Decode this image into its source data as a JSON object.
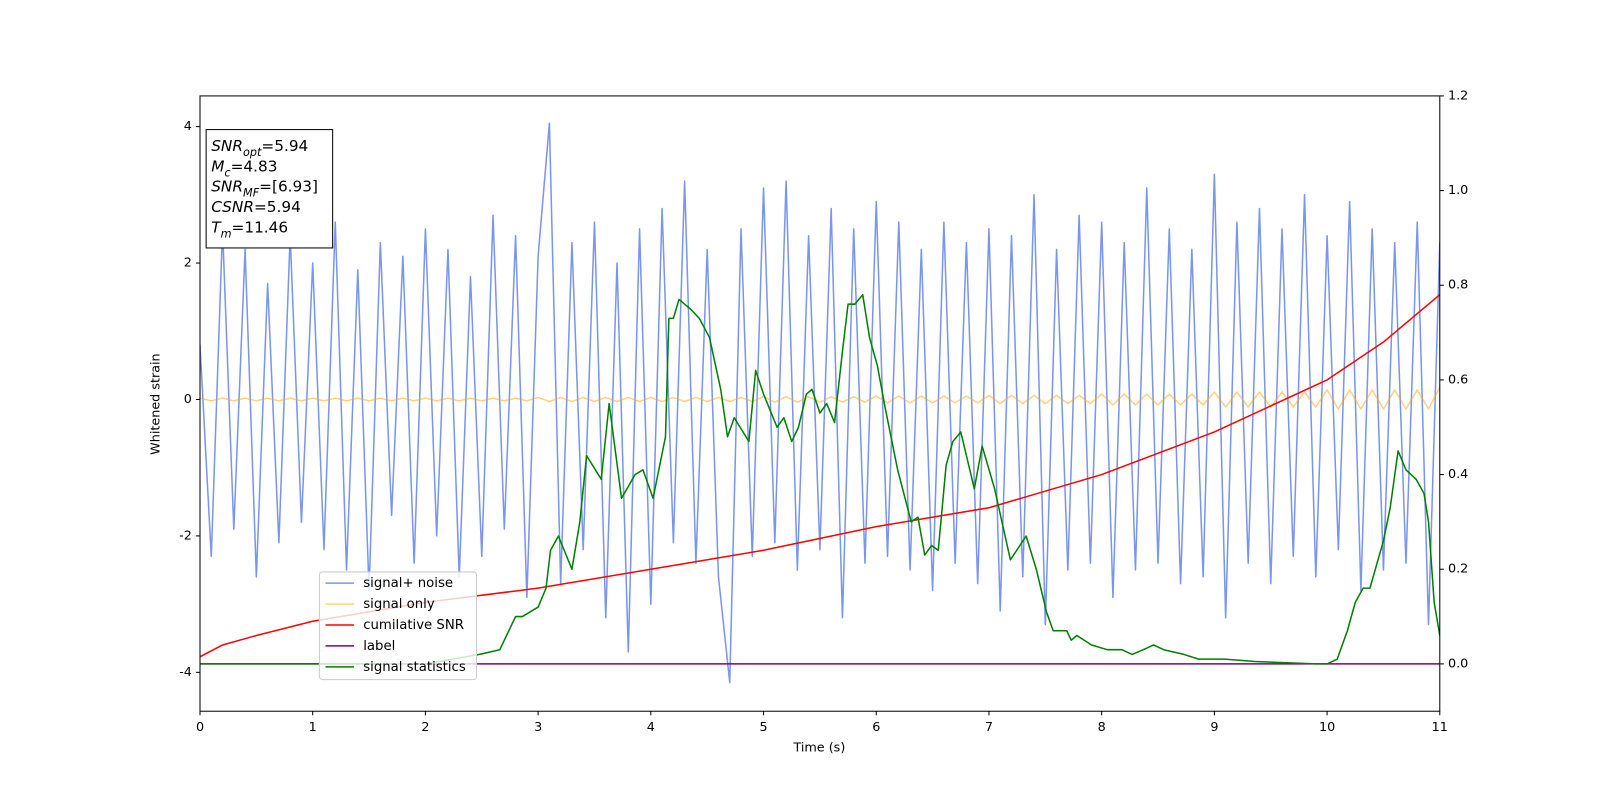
{
  "chart_data": {
    "type": "line",
    "xlabel": "Time (s)",
    "ylabel": "Whitened strain",
    "xlim": [
      0,
      11
    ],
    "xticks": [
      0,
      1,
      2,
      3,
      4,
      5,
      6,
      7,
      8,
      9,
      10,
      11
    ],
    "ylim": [
      -4.57,
      4.45
    ],
    "yticks": [
      -4,
      -2,
      0,
      2,
      4
    ],
    "y2lim": [
      -0.1,
      1.2
    ],
    "y2ticks": [
      {
        "value": 0,
        "label": "0.0"
      },
      0.2,
      0.4,
      0.6,
      0.8,
      {
        "value": 1,
        "label": "1.0"
      },
      1.2
    ],
    "legend_loc": "lower left",
    "annotations": [
      {
        "symbol": "SNR",
        "subscript": "opt",
        "text": "=5.94"
      },
      {
        "symbol": "M",
        "subscript": "c",
        "text": "=4.83"
      },
      {
        "symbol": "SNR",
        "subscript": "MF",
        "text": "=[6.93]"
      },
      {
        "symbol": "CSNR",
        "text": "=5.94"
      },
      {
        "symbol": "T",
        "subscript": "m",
        "text": "=11.46"
      }
    ],
    "x": [
      0,
      0.1,
      0.2,
      0.3,
      0.4,
      0.5,
      0.6,
      0.7,
      0.8,
      0.9,
      1,
      1.1,
      1.2,
      1.3,
      1.4,
      1.5,
      1.6,
      1.7,
      1.8,
      1.9,
      2,
      2.1,
      2.2,
      2.3,
      2.4,
      2.5,
      2.6,
      2.7,
      2.8,
      2.9,
      3,
      3.1,
      3.2,
      3.3,
      3.4,
      3.5,
      3.6,
      3.7,
      3.8,
      3.9,
      4,
      4.1,
      4.2,
      4.3,
      4.4,
      4.5,
      4.6,
      4.7,
      4.8,
      4.9,
      5,
      5.1,
      5.2,
      5.3,
      5.4,
      5.5,
      5.6,
      5.7,
      5.8,
      5.9,
      6,
      6.1,
      6.2,
      6.3,
      6.4,
      6.5,
      6.6,
      6.7,
      6.8,
      6.9,
      7,
      7.1,
      7.2,
      7.3,
      7.4,
      7.5,
      7.6,
      7.7,
      7.8,
      7.9,
      8,
      8.1,
      8.2,
      8.3,
      8.4,
      8.5,
      8.6,
      8.7,
      8.8,
      8.9,
      9,
      9.1,
      9.2,
      9.3,
      9.4,
      9.5,
      9.6,
      9.7,
      9.8,
      9.9,
      10,
      10.1,
      10.2,
      10.3,
      10.4,
      10.5,
      10.6,
      10.7,
      10.8,
      10.9,
      11
    ],
    "series": [
      {
        "name": "signal+ noise",
        "color": "royalblue",
        "alpha": 0.7,
        "values": [
          0.8,
          -2.3,
          2.5,
          -1.9,
          2.2,
          -2.6,
          1.7,
          -2.1,
          2.4,
          -1.8,
          2.0,
          -2.2,
          2.6,
          -2.5,
          1.9,
          -2.8,
          2.3,
          -1.7,
          2.1,
          -2.4,
          2.5,
          -2.0,
          2.2,
          -2.6,
          1.8,
          -2.3,
          2.7,
          -1.9,
          2.4,
          -2.9,
          2.1,
          4.05,
          -2.7,
          2.3,
          -2.2,
          2.6,
          -3.2,
          2.0,
          -3.7,
          2.5,
          -3.0,
          2.8,
          -2.1,
          3.2,
          -2.4,
          2.2,
          -2.6,
          -4.15,
          2.5,
          -2.3,
          3.1,
          -2.1,
          3.2,
          -2.5,
          2.4,
          -2.2,
          2.8,
          -3.2,
          2.5,
          -2.4,
          2.9,
          -2.3,
          2.6,
          -2.5,
          2.2,
          -2.8,
          2.6,
          -2.4,
          2.3,
          -2.7,
          2.5,
          -3.1,
          2.4,
          -2.6,
          3.0,
          -3.3,
          2.2,
          -2.5,
          2.7,
          -2.4,
          2.6,
          -2.9,
          2.3,
          -2.5,
          3.1,
          -2.4,
          2.5,
          -2.7,
          2.2,
          -2.6,
          3.3,
          -3.2,
          2.6,
          -2.4,
          2.8,
          -2.7,
          2.5,
          -2.3,
          3.0,
          -2.6,
          2.4,
          -2.2,
          2.9,
          -2.8,
          2.5,
          -2.5,
          2.3,
          -2.4,
          2.6,
          -3.3,
          2.3
        ]
      },
      {
        "name": "signal only",
        "color": "orange",
        "alpha": 0.5,
        "values": [
          0.02,
          -0.02,
          0.02,
          -0.02,
          0.02,
          -0.02,
          0.02,
          -0.02,
          0.02,
          -0.02,
          0.02,
          -0.02,
          0.02,
          -0.02,
          0.02,
          -0.02,
          0.02,
          -0.02,
          0.02,
          -0.02,
          0.02,
          -0.02,
          0.02,
          -0.02,
          0.02,
          -0.02,
          0.02,
          -0.02,
          0.02,
          -0.02,
          0.03,
          -0.03,
          0.03,
          -0.03,
          0.03,
          -0.03,
          0.03,
          -0.03,
          0.03,
          -0.03,
          0.03,
          -0.03,
          0.03,
          -0.03,
          0.03,
          -0.03,
          0.03,
          -0.03,
          0.03,
          -0.03,
          0.04,
          -0.04,
          0.04,
          -0.04,
          0.04,
          -0.04,
          0.04,
          -0.04,
          0.04,
          -0.04,
          0.05,
          -0.05,
          0.05,
          -0.05,
          0.05,
          -0.05,
          0.05,
          -0.05,
          0.05,
          -0.05,
          0.06,
          -0.06,
          0.06,
          -0.06,
          0.06,
          -0.06,
          0.06,
          -0.06,
          0.06,
          -0.06,
          0.08,
          -0.08,
          0.08,
          -0.08,
          0.08,
          -0.08,
          0.08,
          -0.08,
          0.08,
          -0.08,
          0.11,
          -0.11,
          0.11,
          -0.11,
          0.11,
          -0.11,
          0.11,
          -0.11,
          0.11,
          -0.11,
          0.14,
          -0.14,
          0.14,
          -0.14,
          0.14,
          -0.14,
          0.14,
          -0.14,
          0.14,
          -0.14,
          0.18
        ]
      },
      {
        "name": "cumilative SNR",
        "color": "red",
        "axis": "y2",
        "x": [
          0,
          0.2,
          0.5,
          1,
          2,
          3,
          4,
          5,
          6,
          7,
          8,
          9,
          10,
          10.5,
          11
        ],
        "values": [
          0.015,
          0.04,
          0.06,
          0.09,
          0.13,
          0.16,
          0.2,
          0.24,
          0.29,
          0.33,
          0.4,
          0.49,
          0.6,
          0.68,
          0.78
        ]
      },
      {
        "name": "label",
        "color": "purple",
        "axis": "y2",
        "x": [
          0,
          11
        ],
        "values": [
          0,
          0
        ]
      },
      {
        "name": "signal statistics",
        "color": "green",
        "axis": "y2",
        "x": [
          0,
          1,
          2,
          2.48,
          2.66,
          2.8,
          2.86,
          2.93,
          3.0,
          3.07,
          3.11,
          3.18,
          3.3,
          3.37,
          3.43,
          3.56,
          3.63,
          3.74,
          3.86,
          3.93,
          4.02,
          4.13,
          4.16,
          4.2,
          4.25,
          4.35,
          4.43,
          4.52,
          4.62,
          4.68,
          4.74,
          4.87,
          4.93,
          5.0,
          5.12,
          5.18,
          5.25,
          5.31,
          5.38,
          5.43,
          5.5,
          5.56,
          5.63,
          5.7,
          5.75,
          5.81,
          5.88,
          5.94,
          6.01,
          6.08,
          6.19,
          6.31,
          6.37,
          6.43,
          6.49,
          6.55,
          6.62,
          6.68,
          6.75,
          6.81,
          6.87,
          6.94,
          7.05,
          7.19,
          7.33,
          7.42,
          7.51,
          7.57,
          7.69,
          7.73,
          7.78,
          7.91,
          8.05,
          8.18,
          8.27,
          8.37,
          8.46,
          8.55,
          8.73,
          8.86,
          9.09,
          9.36,
          9.9,
          10.0,
          10.09,
          10.18,
          10.25,
          10.32,
          10.38,
          10.5,
          10.56,
          10.63,
          10.7,
          10.79,
          10.86,
          10.9,
          10.95,
          11
        ],
        "values": [
          0,
          0,
          0,
          0.02,
          0.03,
          0.1,
          0.1,
          0.11,
          0.12,
          0.16,
          0.24,
          0.27,
          0.2,
          0.3,
          0.44,
          0.39,
          0.55,
          0.35,
          0.4,
          0.41,
          0.35,
          0.48,
          0.73,
          0.73,
          0.77,
          0.75,
          0.73,
          0.69,
          0.58,
          0.48,
          0.52,
          0.47,
          0.62,
          0.57,
          0.5,
          0.52,
          0.47,
          0.5,
          0.57,
          0.58,
          0.53,
          0.55,
          0.51,
          0.66,
          0.76,
          0.76,
          0.78,
          0.69,
          0.63,
          0.54,
          0.41,
          0.3,
          0.31,
          0.23,
          0.25,
          0.24,
          0.42,
          0.47,
          0.49,
          0.43,
          0.37,
          0.46,
          0.37,
          0.22,
          0.27,
          0.2,
          0.11,
          0.07,
          0.07,
          0.05,
          0.06,
          0.04,
          0.03,
          0.03,
          0.02,
          0.03,
          0.04,
          0.03,
          0.02,
          0.01,
          0.01,
          0.005,
          0,
          0,
          0.01,
          0.07,
          0.13,
          0.16,
          0.16,
          0.26,
          0.33,
          0.45,
          0.41,
          0.39,
          0.36,
          0.3,
          0.13,
          0.06
        ]
      }
    ]
  }
}
